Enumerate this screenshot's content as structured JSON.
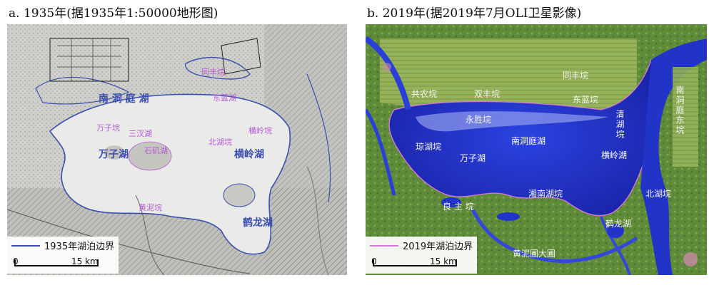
{
  "panels": {
    "a": {
      "title": "a. 1935年(据1935年1:50000地形图)",
      "legend_label": "1935年湖泊边界",
      "legend_color": "#3c4fb0",
      "scale": {
        "start": "0",
        "end": "15 km"
      },
      "labels": {
        "dongting_south": "南 洞 庭 湖",
        "wanzi": "万子湖",
        "hengling": "横岭湖",
        "helong": "鹤龙湖",
        "tongfeng": "同丰垸",
        "small_1": "东蓝湖",
        "small_2": "万子垸",
        "small_3": "三汊湖",
        "small_4": "石矶湖",
        "small_5": "横岭垸",
        "small_6": "北湖垸",
        "small_7": "黄泥垸"
      }
    },
    "b": {
      "title": "b. 2019年(据2019年7月OLI卫星影像)",
      "legend_label": "2019年湖泊边界",
      "legend_color": "#d87ad8",
      "scale": {
        "start": "0",
        "end": "15 km"
      },
      "labels": {
        "tongfeng": "同丰垸",
        "gongnong": "共农垸",
        "shuangfeng": "双丰垸",
        "donglan": "东蓝垸",
        "yongsheng": "永胜垸",
        "qinghu": "清湖垸",
        "dongting_south": "南洞庭湖",
        "wanzi": "万子湖",
        "hengling": "横岭湖",
        "xianghu": "湘南湖垸",
        "jinghu": "琼湖垸",
        "liangzhu": "良 主 垸",
        "beihu": "北湖垸",
        "helong": "鹤龙湖",
        "huangni": "黄泥圃大圃",
        "right_vertical": "南洞庭东垸"
      }
    }
  }
}
